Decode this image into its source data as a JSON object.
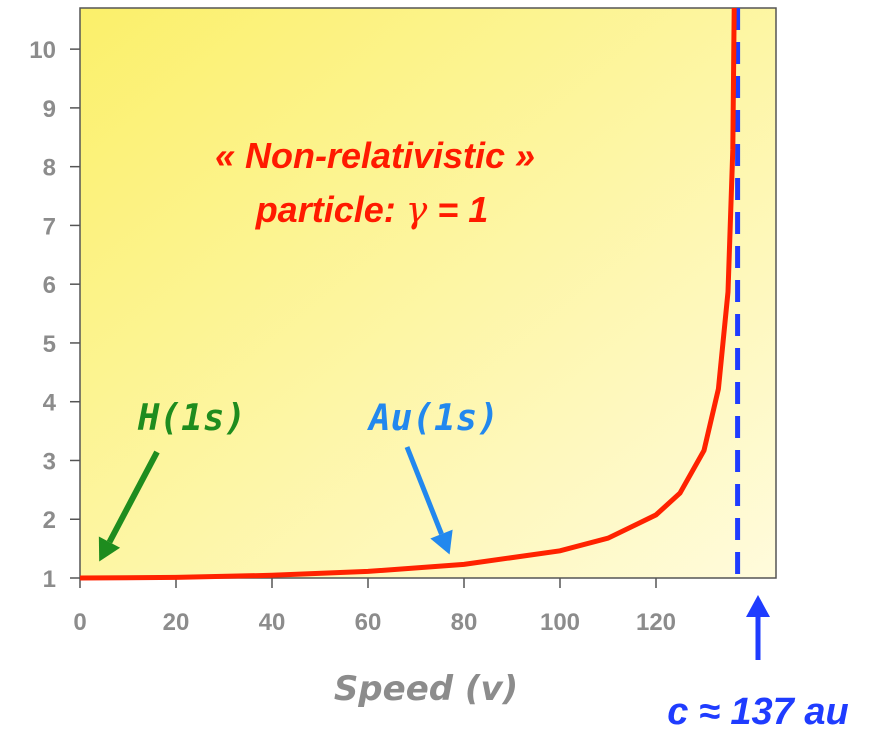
{
  "chart_data": {
    "type": "line",
    "title": "",
    "xlabel": "Speed (v)",
    "ylabel": "",
    "xlim": [
      0,
      145
    ],
    "ylim": [
      1,
      10.7
    ],
    "x_ticks": [
      0,
      20,
      40,
      60,
      80,
      100,
      120
    ],
    "y_ticks": [
      1,
      2,
      3,
      4,
      5,
      6,
      7,
      8,
      9,
      10
    ],
    "grid": false,
    "background": "yellow gradient",
    "series": [
      {
        "formula": "gamma = 1/sqrt(1-(v/c)^2)",
        "c": 137,
        "x": [
          0,
          20,
          40,
          60,
          80,
          100,
          110,
          120,
          125,
          130,
          133,
          135,
          136,
          136.6
        ],
        "y": [
          1.0,
          1.01,
          1.046,
          1.112,
          1.232,
          1.463,
          1.677,
          2.074,
          2.444,
          3.169,
          4.216,
          5.869,
          8.289,
          13.1
        ],
        "color": "#ff2200"
      }
    ],
    "vline": {
      "x": 137,
      "style": "dashed",
      "color": "#1f3cff"
    },
    "annotations": [
      {
        "id": "nonrel_line1",
        "text": "« Non-relativistic »",
        "color": "#ff1a00"
      },
      {
        "id": "nonrel_line2_prefix",
        "text": "particle: ",
        "color": "#ff1a00"
      },
      {
        "id": "nonrel_gamma",
        "text": "γ",
        "color": "#ff1a00"
      },
      {
        "id": "nonrel_line2_suffix",
        "text": " = 1",
        "color": "#ff1a00"
      },
      {
        "id": "h1s",
        "text": "H(1s)",
        "color": "#1e8c1e",
        "arrow_to": {
          "x": 4,
          "y": 1.28
        }
      },
      {
        "id": "au1s",
        "text": "Au(1s)",
        "color": "#2288ee",
        "arrow_to": {
          "x": 77,
          "y": 1.4
        }
      },
      {
        "id": "c_label",
        "text": "c ≈ 137 au",
        "color": "#1f3cff",
        "arrow_to": {
          "x": 137,
          "y": 0.35
        }
      }
    ]
  },
  "colors": {
    "curve": "#ff2200",
    "axis": "#555555",
    "tick_text": "#8c8c8c",
    "bg_light": "#fffbdc",
    "bg_dark": "#fbf06a"
  }
}
